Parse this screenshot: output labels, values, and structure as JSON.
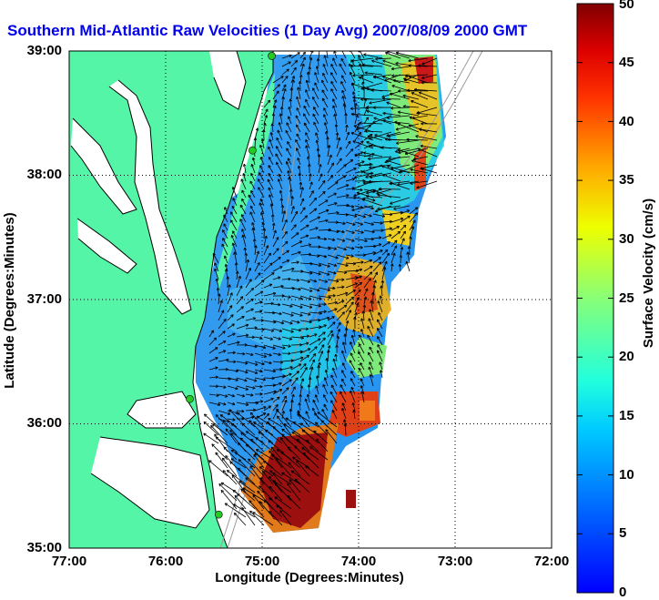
{
  "title": "Southern Mid-Atlantic Raw Velocities (1 Day Avg) 2007/08/09 2000 GMT",
  "map": {
    "x_axis": {
      "label": "Longitude (Degrees:Minutes)",
      "range": [
        -77,
        -72
      ],
      "ticks": [
        {
          "value": -77,
          "label": "77:00"
        },
        {
          "value": -76,
          "label": "76:00"
        },
        {
          "value": -75,
          "label": "75:00"
        },
        {
          "value": -74,
          "label": "74:00"
        },
        {
          "value": -73,
          "label": "73:00"
        },
        {
          "value": -72,
          "label": "72:00"
        }
      ]
    },
    "y_axis": {
      "label": "Latitude (Degrees:Minutes)",
      "range": [
        35,
        39
      ],
      "ticks": [
        {
          "value": 39,
          "label": "39:00"
        },
        {
          "value": 38,
          "label": "38:00"
        },
        {
          "value": 37,
          "label": "37:00"
        },
        {
          "value": 36,
          "label": "36:00"
        },
        {
          "value": 35,
          "label": "35:00"
        }
      ]
    },
    "grid": "dotted",
    "colors": {
      "land": "#55f5a8",
      "water_background": "#ffffff",
      "coastline": "#000000",
      "bathymetry": "#9a9a9a",
      "station_marker": "#22cc22",
      "vector": "#000000"
    },
    "stations": [
      {
        "lon": -74.9,
        "lat": 38.96
      },
      {
        "lon": -75.1,
        "lat": 38.2
      },
      {
        "lon": -75.75,
        "lat": 36.2
      },
      {
        "lon": -75.45,
        "lat": 35.27
      }
    ]
  },
  "colorbar": {
    "label": "Surface Velocity (cm/s)",
    "min": 0,
    "max": 50,
    "ticks": [
      "0",
      "5",
      "10",
      "15",
      "20",
      "25",
      "30",
      "35",
      "40",
      "45",
      "50"
    ]
  }
}
